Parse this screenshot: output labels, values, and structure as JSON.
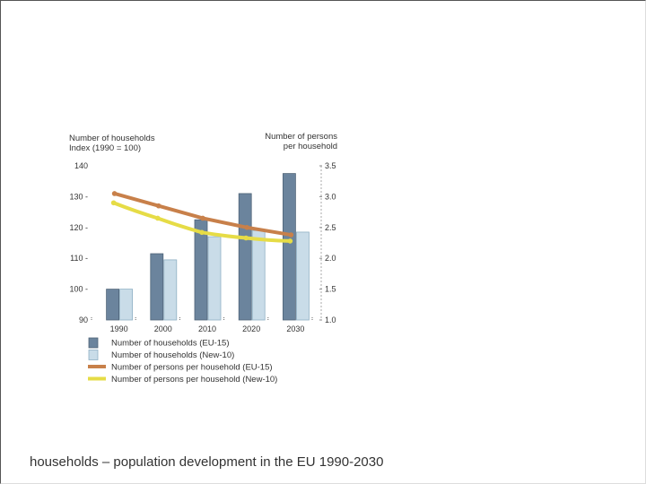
{
  "caption": "households – population development in the EU 1990-2030",
  "chart_data": {
    "type": "bar+line",
    "categories": [
      "1990",
      "2000",
      "2010",
      "2020",
      "2030"
    ],
    "left_axis": {
      "title_line1": "Number of households",
      "title_line2": "Index (1990 = 100)",
      "ylim": [
        90,
        140
      ],
      "ticks": [
        {
          "value": 90,
          "label": "90"
        },
        {
          "value": 100,
          "label": "100 -"
        },
        {
          "value": 110,
          "label": "110 -"
        },
        {
          "value": 120,
          "label": "120 -"
        },
        {
          "value": 130,
          "label": "130 -"
        },
        {
          "value": 140,
          "label": "140"
        }
      ]
    },
    "right_axis": {
      "title_line1": "Number of persons",
      "title_line2": "per household",
      "ylim": [
        1.0,
        3.5
      ],
      "ticks": [
        {
          "value": 1.0,
          "label": "1.0"
        },
        {
          "value": 1.5,
          "label": "1.5"
        },
        {
          "value": 2.0,
          "label": "2.0"
        },
        {
          "value": 2.5,
          "label": "2.5"
        },
        {
          "value": 3.0,
          "label": "3.0"
        },
        {
          "value": 3.5,
          "label": "3.5"
        }
      ]
    },
    "bar_series": [
      {
        "name": "Number of households (EU-15)",
        "color": "#6b849d",
        "values": [
          100,
          111.5,
          122.5,
          131,
          137.5
        ]
      },
      {
        "name": "Number of households (New-10)",
        "color": "#c9dce8",
        "values": [
          100,
          109.5,
          117,
          119,
          118.5
        ]
      }
    ],
    "line_series": [
      {
        "name": "Number of persons per household (EU-15)",
        "color": "#c8804a",
        "values": [
          3.05,
          2.85,
          2.65,
          2.5,
          2.38
        ]
      },
      {
        "name": "Number of persons per household (New-10)",
        "color": "#e6dc46",
        "values": [
          2.9,
          2.65,
          2.42,
          2.33,
          2.28
        ]
      }
    ]
  }
}
